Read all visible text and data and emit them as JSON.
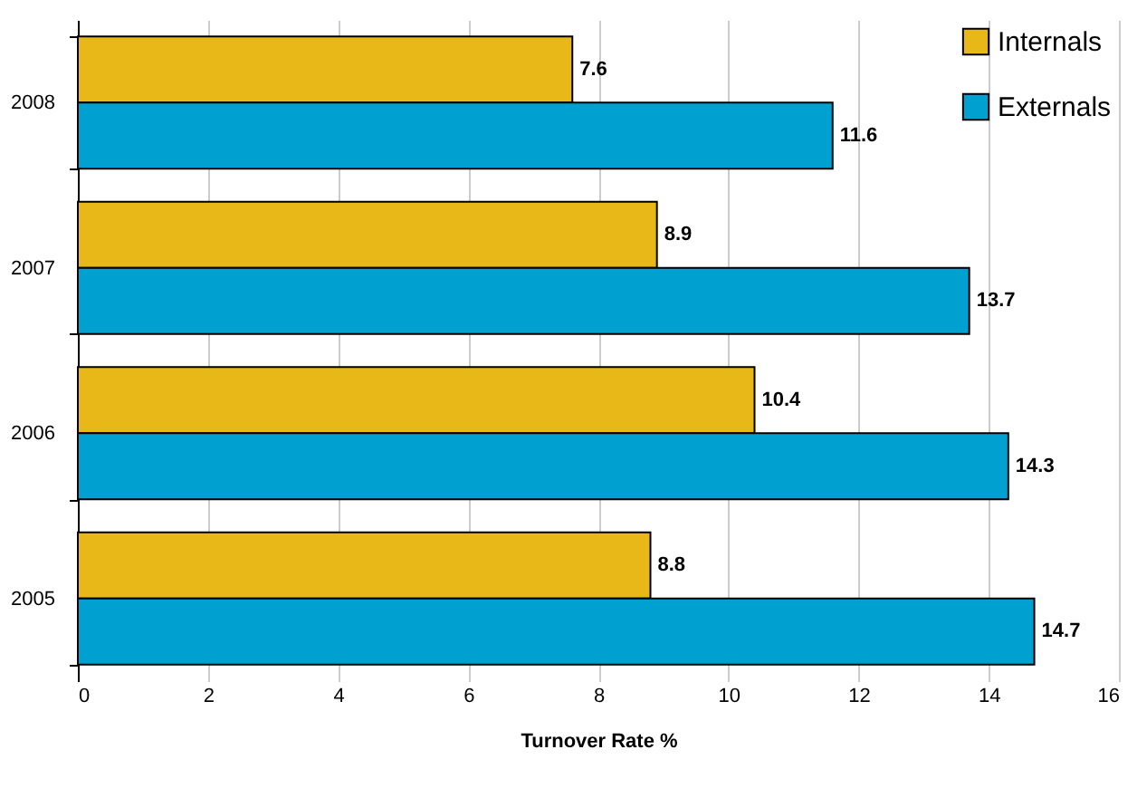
{
  "chart_data": {
    "type": "bar",
    "orientation": "horizontal",
    "xlabel": "Turnover Rate %",
    "categories": [
      "2008",
      "2007",
      "2006",
      "2005"
    ],
    "series": [
      {
        "name": "Internals",
        "color": "#e8b818",
        "values": [
          7.6,
          8.9,
          10.4,
          8.8
        ]
      },
      {
        "name": "Externals",
        "color": "#00a0d0",
        "values": [
          11.6,
          13.7,
          14.3,
          14.7
        ]
      }
    ],
    "xlim": [
      0,
      16
    ],
    "xticks": [
      0,
      2,
      4,
      6,
      8,
      10,
      12,
      14,
      16
    ],
    "grid": "x",
    "legend": "top right",
    "data_labels": true
  }
}
